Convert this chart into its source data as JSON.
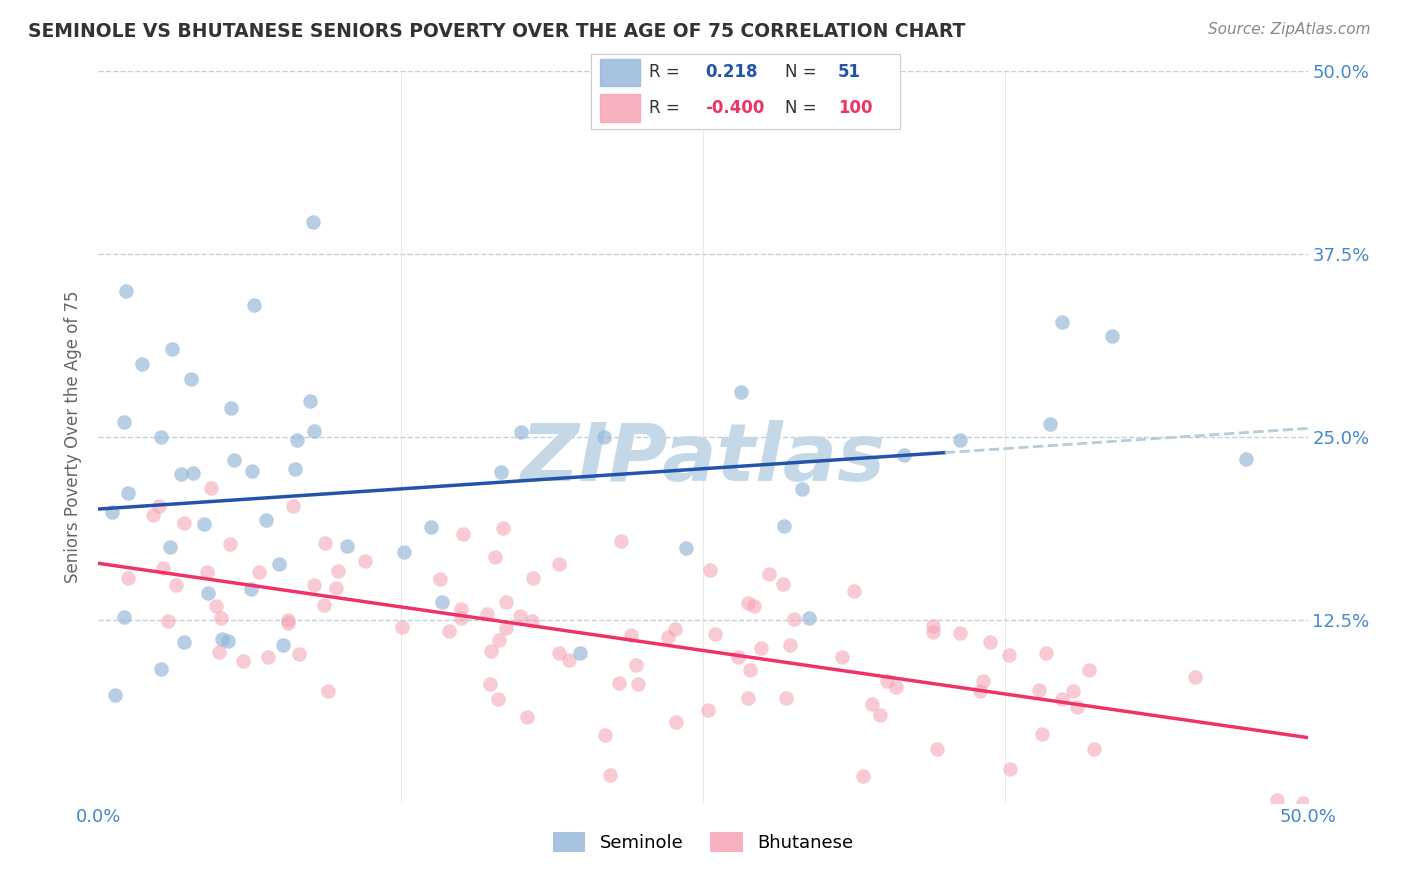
{
  "title": "SEMINOLE VS BHUTANESE SENIORS POVERTY OVER THE AGE OF 75 CORRELATION CHART",
  "source": "Source: ZipAtlas.com",
  "ylabel": "Seniors Poverty Over the Age of 75",
  "r_seminole": 0.218,
  "n_seminole": 51,
  "r_bhutanese": -0.4,
  "n_bhutanese": 100,
  "xmin": 0.0,
  "xmax": 0.5,
  "ymin": 0.0,
  "ymax": 0.5,
  "color_seminole": "#92b4d8",
  "color_bhutanese": "#f4a0b0",
  "line_color_seminole": "#2255aa",
  "line_color_bhutanese": "#ee3366",
  "dashed_line_color": "#b8ccd8",
  "watermark_color": "#c5d8e8",
  "background_color": "#ffffff",
  "tick_color": "#4488cc",
  "title_color": "#333333",
  "source_color": "#888888",
  "legend_text_color_blue": "#2255aa",
  "legend_text_color_pink": "#ee3366",
  "seminole_seed": 42,
  "bhutanese_seed": 123
}
